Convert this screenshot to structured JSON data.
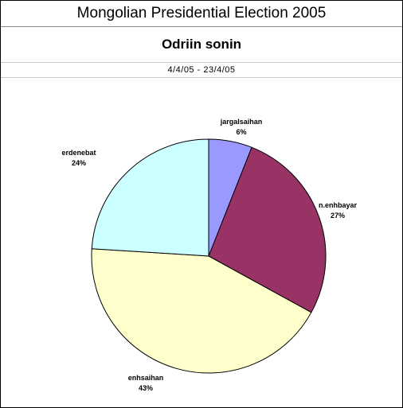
{
  "header": {
    "title": "Mongolian Presidential Election 2005",
    "subtitle": "Odriin sonin",
    "date_range": "4/4/05 - 23/4/05"
  },
  "chart_data": {
    "type": "pie",
    "start_angle_deg": 0,
    "direction": "clockwise",
    "slices": [
      {
        "name": "jargalsaihan",
        "value": 6,
        "label": "6%",
        "color": "#9999ff"
      },
      {
        "name": "n.enhbayar",
        "value": 27,
        "label": "27%",
        "color": "#993366"
      },
      {
        "name": "enhsaihan",
        "value": 43,
        "label": "43%",
        "color": "#ffffcc"
      },
      {
        "name": "erdenebat",
        "value": 24,
        "label": "24%",
        "color": "#ccffff"
      }
    ]
  }
}
